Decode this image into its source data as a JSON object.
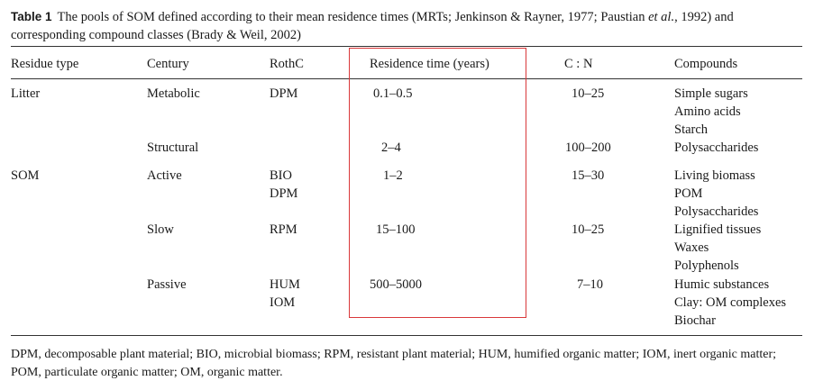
{
  "caption": {
    "label": "Table 1",
    "text_part1": "The pools of SOM defined according to their mean residence times (MRTs; Jenkinson & Rayner, 1977; Paustian ",
    "text_italic": "et al.",
    "text_part2": ", 1992) and corresponding compound classes (Brady & Weil, 2002)"
  },
  "headers": [
    "Residue type",
    "Century",
    "RothC",
    "Residence time (years)",
    "C : N",
    "Compounds"
  ],
  "rows": [
    {
      "residue": "Litter",
      "century": "Metabolic",
      "rothc": [
        "DPM"
      ],
      "residence": "0.1–0.5",
      "cn": "10–25",
      "compounds": [
        "Simple sugars",
        "Amino acids",
        "Starch"
      ]
    },
    {
      "residue": "",
      "century": "Structural",
      "rothc": [],
      "residence": "2–4",
      "cn": "100–200",
      "compounds": [
        "Polysaccharides"
      ]
    },
    {
      "residue": "SOM",
      "century": "Active",
      "rothc": [
        "BIO",
        "DPM"
      ],
      "residence": "1–2",
      "cn": "15–30",
      "compounds": [
        "Living biomass",
        "POM",
        "Polysaccharides"
      ]
    },
    {
      "residue": "",
      "century": "Slow",
      "rothc": [
        "RPM"
      ],
      "residence": "15–100",
      "cn": "10–25",
      "compounds": [
        "Lignified tissues",
        "Waxes",
        "Polyphenols"
      ]
    },
    {
      "residue": "",
      "century": "Passive",
      "rothc": [
        "HUM",
        "IOM"
      ],
      "residence": "500–5000",
      "cn": "7–10",
      "compounds": [
        "Humic substances",
        "Clay: OM complexes",
        "Biochar"
      ]
    }
  ],
  "footnote": "DPM, decomposable plant material; BIO, microbial biomass; RPM, resistant plant material; HUM, humified organic matter; IOM, inert organic matter; POM, particulate organic matter; OM, organic matter.",
  "colors": {
    "highlight": "#d9383a",
    "text": "#1a1a1a"
  }
}
